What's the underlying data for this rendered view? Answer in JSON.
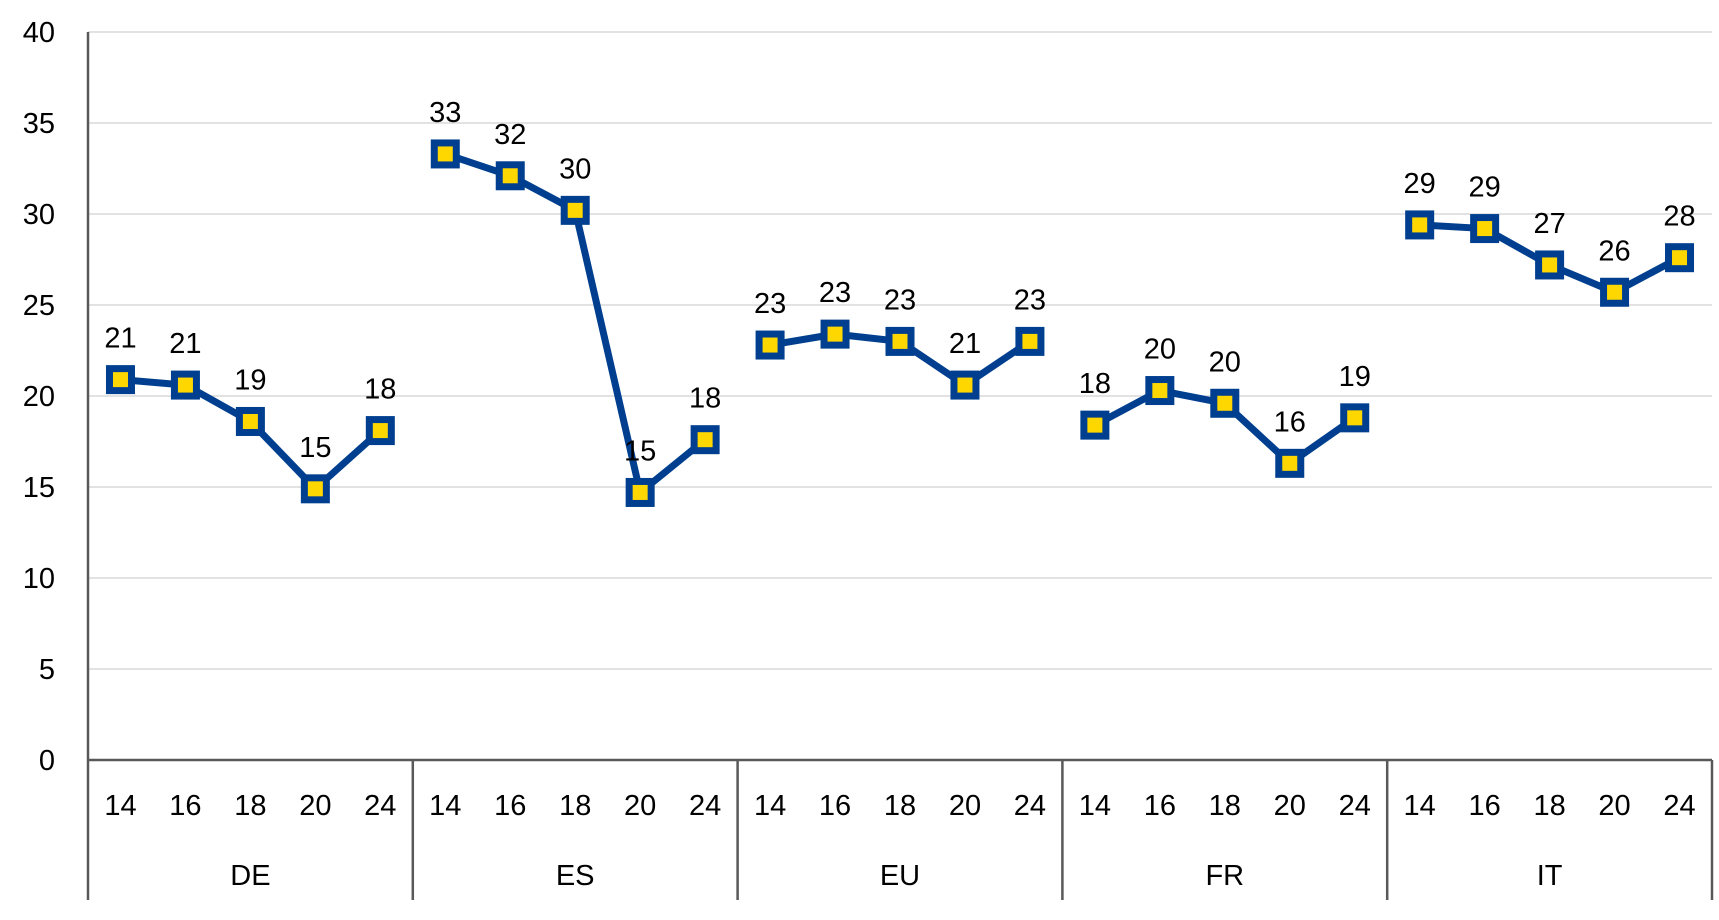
{
  "chart_data": {
    "type": "line",
    "title": "",
    "xlabel": "",
    "ylabel": "",
    "ylim": [
      0,
      40
    ],
    "yticks": [
      0,
      5,
      10,
      15,
      20,
      25,
      30,
      35,
      40
    ],
    "grid": true,
    "legend": "none",
    "line_color": "#003F8F",
    "marker_fill": "#FFD700",
    "gridline_color": "#D9D9D9",
    "axis_color": "#595959",
    "groups": [
      {
        "name": "DE",
        "x": [
          "14",
          "16",
          "18",
          "20",
          "24"
        ],
        "values": [
          20.9,
          20.6,
          18.6,
          14.9,
          18.1
        ],
        "labels": [
          "21",
          "21",
          "19",
          "15",
          "18"
        ]
      },
      {
        "name": "ES",
        "x": [
          "14",
          "16",
          "18",
          "20",
          "24"
        ],
        "values": [
          33.3,
          32.1,
          30.2,
          14.7,
          17.6
        ],
        "labels": [
          "33",
          "32",
          "30",
          "15",
          "18"
        ]
      },
      {
        "name": "EU",
        "x": [
          "14",
          "16",
          "18",
          "20",
          "24"
        ],
        "values": [
          22.8,
          23.4,
          23.0,
          20.6,
          23.0
        ],
        "labels": [
          "23",
          "23",
          "23",
          "21",
          "23"
        ]
      },
      {
        "name": "FR",
        "x": [
          "14",
          "16",
          "18",
          "20",
          "24"
        ],
        "values": [
          18.4,
          20.3,
          19.6,
          16.3,
          18.8
        ],
        "labels": [
          "18",
          "20",
          "20",
          "16",
          "19"
        ]
      },
      {
        "name": "IT",
        "x": [
          "14",
          "16",
          "18",
          "20",
          "24"
        ],
        "values": [
          29.4,
          29.2,
          27.2,
          25.7,
          27.6
        ],
        "labels": [
          "29",
          "29",
          "27",
          "26",
          "28"
        ]
      }
    ]
  }
}
